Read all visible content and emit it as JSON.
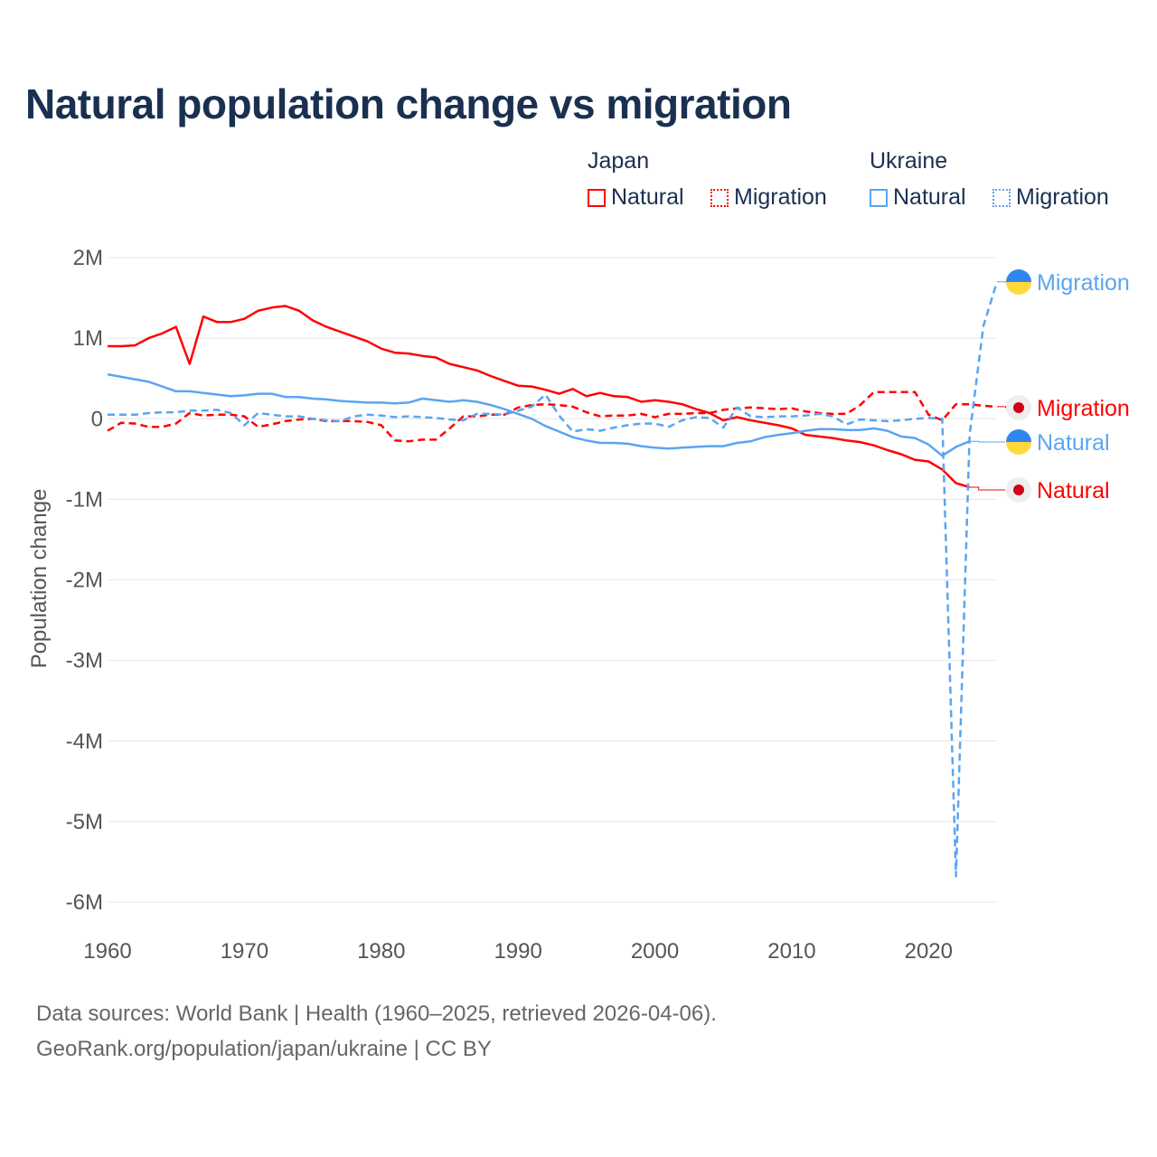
{
  "chart_data": {
    "type": "line",
    "title": "Natural population change vs migration",
    "xlabel": "",
    "ylabel": "Population change",
    "xlim": [
      1960,
      2025
    ],
    "ylim": [
      -6000000,
      2000000
    ],
    "grid": true,
    "x_ticks": [
      "1960",
      "1970",
      "1980",
      "1990",
      "2000",
      "2010",
      "2020"
    ],
    "x_tick_values": [
      1960,
      1970,
      1980,
      1990,
      2000,
      2010,
      2020
    ],
    "y_ticks": [
      "2M",
      "1M",
      "0",
      "-1M",
      "-2M",
      "-3M",
      "-4M",
      "-5M",
      "-6M"
    ],
    "y_tick_values": [
      2,
      1,
      0,
      -1,
      -2,
      -3,
      -4,
      -5,
      -6
    ],
    "unit": "millions",
    "legend": {
      "placement": "top-right",
      "groups": [
        {
          "label": "Japan",
          "items": [
            "Natural",
            "Migration"
          ]
        },
        {
          "label": "Ukraine",
          "items": [
            "Natural",
            "Migration"
          ]
        }
      ]
    },
    "series": [
      {
        "name": "Japan Natural",
        "country": "Japan",
        "kind": "Natural",
        "color": "#ff0000",
        "dash": false,
        "start": 1960,
        "values": [
          0.9,
          0.9,
          0.91,
          1.0,
          1.06,
          1.14,
          0.68,
          1.27,
          1.2,
          1.2,
          1.24,
          1.34,
          1.38,
          1.4,
          1.34,
          1.22,
          1.14,
          1.08,
          1.02,
          0.96,
          0.87,
          0.82,
          0.81,
          0.78,
          0.76,
          0.68,
          0.64,
          0.6,
          0.53,
          0.47,
          0.41,
          0.4,
          0.36,
          0.31,
          0.37,
          0.28,
          0.32,
          0.28,
          0.27,
          0.21,
          0.23,
          0.21,
          0.18,
          0.12,
          0.07,
          -0.02,
          0.02,
          -0.02,
          -0.05,
          -0.08,
          -0.12,
          -0.2,
          -0.22,
          -0.24,
          -0.27,
          -0.29,
          -0.33,
          -0.39,
          -0.44,
          -0.51,
          -0.53,
          -0.63,
          -0.8,
          -0.85
        ]
      },
      {
        "name": "Japan Migration",
        "country": "Japan",
        "kind": "Migration",
        "color": "#ff0000",
        "dash": true,
        "start": 1960,
        "values": [
          -0.15,
          -0.05,
          -0.06,
          -0.1,
          -0.1,
          -0.06,
          0.07,
          0.04,
          0.05,
          0.05,
          0.03,
          -0.1,
          -0.07,
          -0.03,
          -0.01,
          0.0,
          -0.03,
          -0.03,
          -0.03,
          -0.04,
          -0.08,
          -0.27,
          -0.28,
          -0.26,
          -0.26,
          -0.12,
          0.03,
          0.03,
          0.05,
          0.05,
          0.14,
          0.17,
          0.18,
          0.17,
          0.15,
          0.08,
          0.03,
          0.04,
          0.04,
          0.06,
          0.02,
          0.06,
          0.06,
          0.07,
          0.07,
          0.11,
          0.13,
          0.14,
          0.13,
          0.12,
          0.13,
          0.09,
          0.07,
          0.06,
          0.06,
          0.17,
          0.33,
          0.33,
          0.33,
          0.33,
          0.05,
          -0.02,
          0.18,
          0.18,
          0.16,
          0.15
        ]
      },
      {
        "name": "Ukraine Natural",
        "country": "Ukraine",
        "kind": "Natural",
        "color": "#5aa5f0",
        "dash": false,
        "start": 1960,
        "values": [
          0.55,
          0.52,
          0.49,
          0.46,
          0.4,
          0.34,
          0.34,
          0.32,
          0.3,
          0.28,
          0.29,
          0.31,
          0.31,
          0.27,
          0.27,
          0.25,
          0.24,
          0.22,
          0.21,
          0.2,
          0.2,
          0.19,
          0.2,
          0.25,
          0.23,
          0.21,
          0.23,
          0.21,
          0.17,
          0.12,
          0.06,
          0.0,
          -0.09,
          -0.16,
          -0.23,
          -0.27,
          -0.3,
          -0.3,
          -0.31,
          -0.34,
          -0.36,
          -0.37,
          -0.36,
          -0.35,
          -0.34,
          -0.34,
          -0.3,
          -0.28,
          -0.23,
          -0.2,
          -0.18,
          -0.15,
          -0.13,
          -0.13,
          -0.14,
          -0.14,
          -0.12,
          -0.15,
          -0.22,
          -0.24,
          -0.32,
          -0.46,
          -0.35,
          -0.28
        ]
      },
      {
        "name": "Ukraine Migration",
        "country": "Ukraine",
        "kind": "Migration",
        "color": "#5aa5f0",
        "dash": true,
        "start": 1960,
        "values": [
          0.05,
          0.05,
          0.05,
          0.07,
          0.08,
          0.08,
          0.1,
          0.1,
          0.11,
          0.07,
          -0.08,
          0.07,
          0.05,
          0.03,
          0.03,
          0.0,
          -0.02,
          -0.03,
          0.03,
          0.05,
          0.04,
          0.02,
          0.03,
          0.02,
          0.01,
          -0.01,
          -0.02,
          0.06,
          0.06,
          0.05,
          0.1,
          0.15,
          0.3,
          0.04,
          -0.16,
          -0.13,
          -0.15,
          -0.11,
          -0.08,
          -0.06,
          -0.06,
          -0.1,
          -0.02,
          0.02,
          0.01,
          -0.11,
          0.14,
          0.03,
          0.02,
          0.03,
          0.03,
          0.04,
          0.06,
          0.03,
          -0.07,
          -0.01,
          -0.02,
          -0.03,
          -0.02,
          0.0,
          0.01,
          0.0,
          -5.68,
          -0.2,
          1.15,
          1.7
        ]
      }
    ],
    "end_labels": [
      {
        "series": "Ukraine Migration",
        "text": "Migration",
        "flag": "ukraine"
      },
      {
        "series": "Japan Migration",
        "text": "Migration",
        "flag": "japan"
      },
      {
        "series": "Ukraine Natural",
        "text": "Natural",
        "flag": "ukraine"
      },
      {
        "series": "Japan Natural",
        "text": "Natural",
        "flag": "japan"
      }
    ]
  },
  "legend": {
    "japan": "Japan",
    "ukraine": "Ukraine",
    "natural": "Natural",
    "migration": "Migration"
  },
  "colors": {
    "japan": "#ff0000",
    "ukraine": "#5aa5f0",
    "title": "#1a3050"
  },
  "footer": {
    "line1": "Data sources: World Bank | Health (1960–2025, retrieved 2026-04-06).",
    "line2": "GeoRank.org/population/japan/ukraine | CC BY"
  }
}
